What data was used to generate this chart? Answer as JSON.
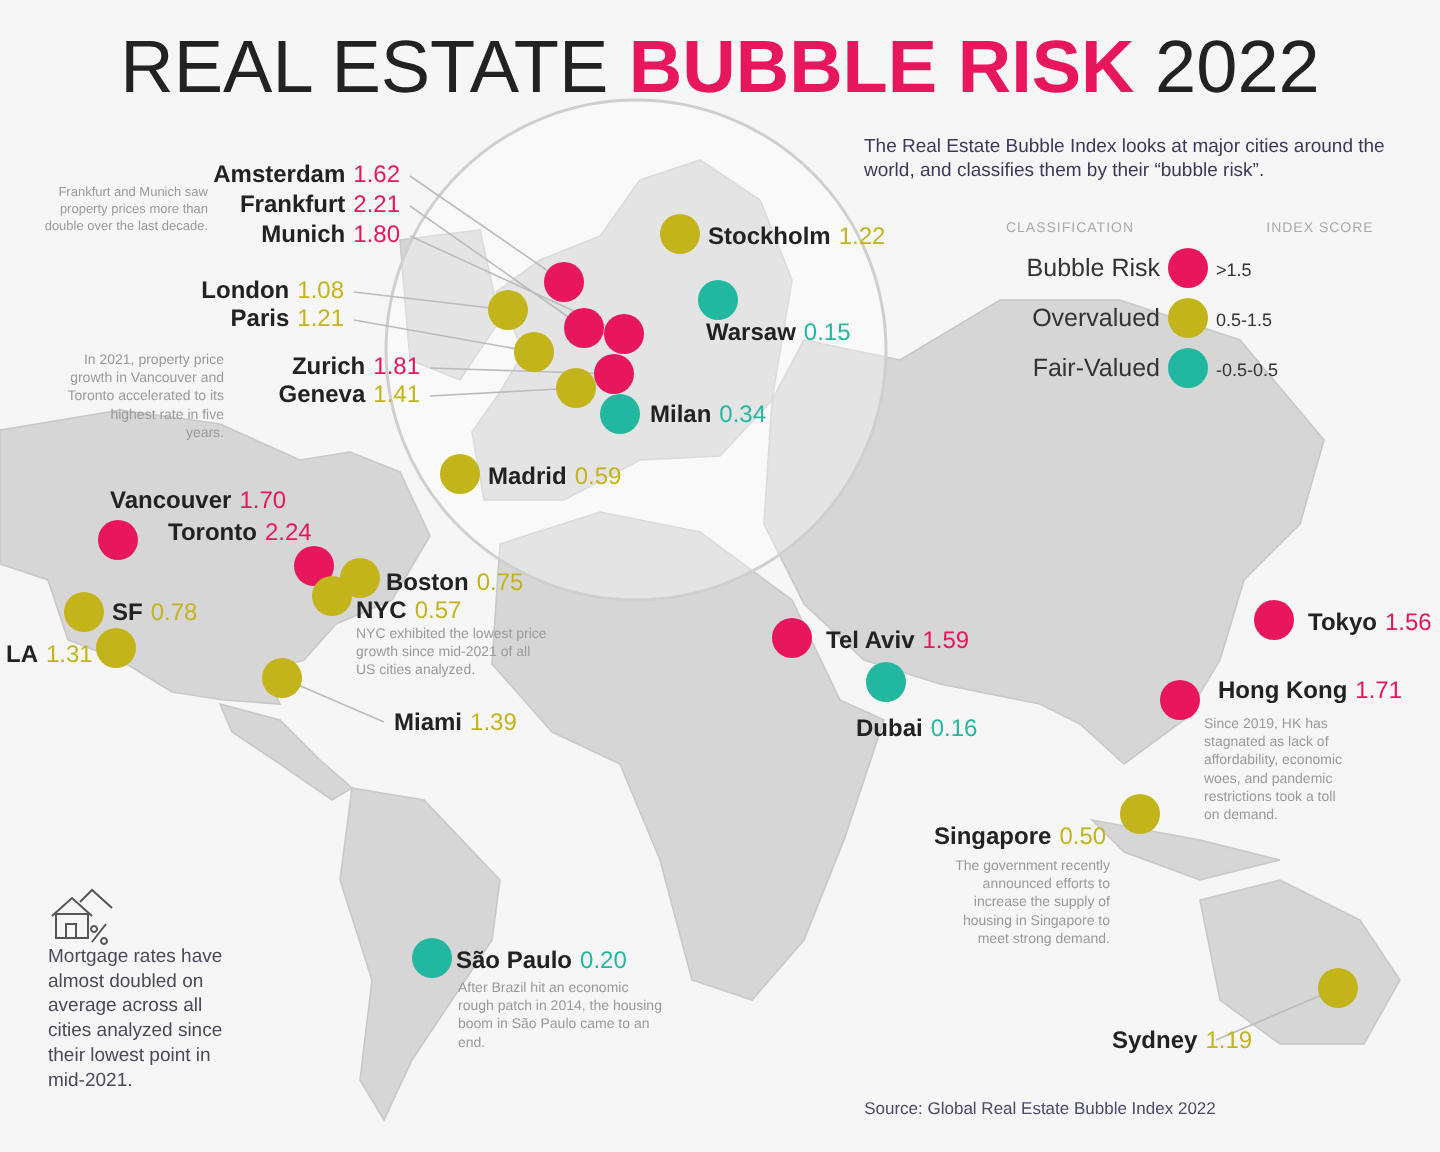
{
  "chart_data": {
    "type": "other",
    "title": "REAL ESTATE BUBBLE RISK 2022",
    "subtitle": "The Real Estate Bubble Index looks at major cities around the world, and classifies them by their “bubble risk”.",
    "categories": [
      "Amsterdam",
      "Frankfurt",
      "Munich",
      "London",
      "Paris",
      "Zurich",
      "Geneva",
      "Milan",
      "Stockholm",
      "Warsaw",
      "Madrid",
      "Vancouver",
      "Toronto",
      "Boston",
      "NYC",
      "SF",
      "LA",
      "Miami",
      "São Paulo",
      "Tel Aviv",
      "Dubai",
      "Tokyo",
      "Hong Kong",
      "Singapore",
      "Sydney"
    ],
    "series": [
      {
        "name": "Bubble Risk",
        "color": "#e8175d",
        "values": [
          1.62,
          2.21,
          1.8,
          null,
          null,
          1.81,
          null,
          null,
          null,
          null,
          null,
          1.7,
          2.24,
          null,
          null,
          null,
          null,
          null,
          null,
          1.59,
          null,
          1.56,
          1.71,
          null,
          null
        ],
        "value_labels": [
          "1.62",
          "2.21",
          "1.80",
          null,
          null,
          "1.81",
          null,
          null,
          null,
          null,
          null,
          "1.70",
          "2.24",
          null,
          null,
          null,
          null,
          null,
          null,
          "1.59",
          null,
          "1.56",
          "1.71",
          null,
          null
        ]
      },
      {
        "name": "Overvalued",
        "color": "#c4b41c",
        "values": [
          null,
          null,
          null,
          1.08,
          1.21,
          null,
          1.41,
          null,
          1.22,
          null,
          0.59,
          null,
          null,
          0.75,
          0.57,
          0.78,
          1.31,
          1.39,
          null,
          null,
          null,
          null,
          null,
          0.5,
          1.19
        ],
        "value_labels": [
          null,
          null,
          null,
          "1.08",
          "1.21",
          null,
          "1.41",
          null,
          "1.22",
          null,
          "0.59",
          null,
          null,
          "0.75",
          "0.57",
          "0.78",
          "1.31",
          "1.39",
          null,
          null,
          null,
          null,
          null,
          "0.50",
          "1.19"
        ]
      },
      {
        "name": "Fair-Valued",
        "color": "#22b8a0",
        "values": [
          null,
          null,
          null,
          null,
          null,
          null,
          null,
          0.34,
          null,
          0.15,
          null,
          null,
          null,
          null,
          null,
          null,
          null,
          null,
          0.2,
          null,
          0.16,
          null,
          null,
          null,
          null
        ],
        "value_labels": [
          null,
          null,
          null,
          null,
          null,
          null,
          null,
          "0.34",
          null,
          "0.15",
          null,
          null,
          null,
          null,
          null,
          null,
          null,
          null,
          "0.20",
          null,
          "0.16",
          null,
          null,
          null,
          null
        ]
      }
    ],
    "legend": "top right",
    "legend_title": "CLASSIFICATION",
    "data_labels": true,
    "annotations": [
      "Frankfurt and Munich saw property prices more than double over the last decade.",
      "In 2021, property price growth in Vancouver and Toronto accelerated to its highest rate in five years.",
      "NYC exhibited the lowest price growth since mid-2021 of all US cities analyzed.",
      "Since 2019, HK has stagnated as lack of affordability, economic woes, and pandemic restrictions took a toll on demand.",
      "The government recently announced efforts to increase the supply of housing in Singapore to meet strong demand.",
      "After Brazil hit an economic rough patch in 2014, the housing boom in São Paulo came to an end.",
      "Mortgage rates have almost doubled on average across all cities analyzed since their lowest point in mid-2021.",
      "INDEX SCORE",
      ">1.5",
      "0.5-1.5",
      "-0.5-0.5",
      "Source: Global Real Estate Bubble Index 2022"
    ]
  }
}
